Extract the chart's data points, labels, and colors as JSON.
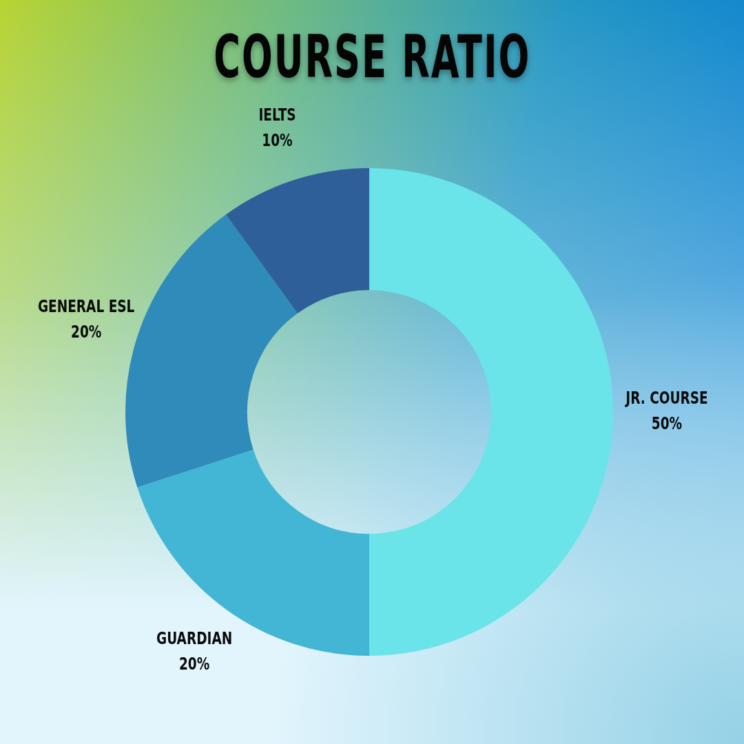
{
  "chart_data": {
    "type": "donut",
    "title": "COURSE RATIO",
    "categories": [
      "JR. COURSE",
      "GUARDIAN",
      "GENERAL ESL",
      "IELTS"
    ],
    "values": [
      50,
      20,
      20,
      10
    ],
    "colors": [
      "#6ae4e8",
      "#42b6d4",
      "#2e8bba",
      "#2e5f98"
    ],
    "value_labels": [
      "50%",
      "20%",
      "20%",
      "10%"
    ]
  }
}
